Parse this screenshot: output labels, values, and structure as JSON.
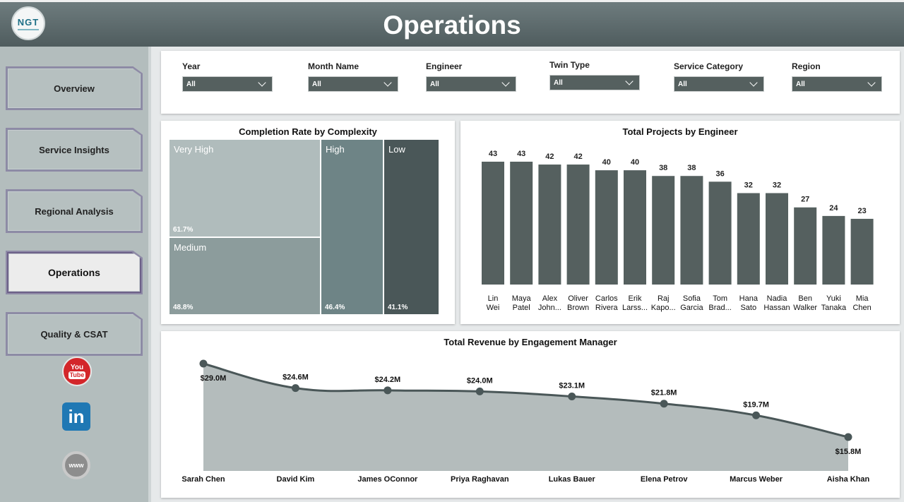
{
  "header": {
    "title": "Operations",
    "logo_text": "NGT"
  },
  "sidebar": {
    "items": [
      {
        "label": "Overview",
        "active": false
      },
      {
        "label": "Service Insights",
        "active": false
      },
      {
        "label": "Regional Analysis",
        "active": false
      },
      {
        "label": "Operations",
        "active": true
      },
      {
        "label": "Quality & CSAT",
        "active": false
      }
    ],
    "social": [
      {
        "icon": "youtube-icon",
        "label_top": "You",
        "label_bottom": "Tube"
      },
      {
        "icon": "linkedin-icon",
        "label": "in"
      },
      {
        "icon": "website-icon",
        "label": "www"
      }
    ]
  },
  "filters": [
    {
      "label": "Year",
      "value": "All"
    },
    {
      "label": "Month Name",
      "value": "All"
    },
    {
      "label": "Engineer",
      "value": "All"
    },
    {
      "label": "Twin Type",
      "value": "All"
    },
    {
      "label": "Service Category",
      "value": "All"
    },
    {
      "label": "Region",
      "value": "All"
    }
  ],
  "treemap": {
    "title": "Completion Rate by Complexity",
    "tiles": [
      {
        "label": "Very High",
        "value": "61.7%",
        "color": "#b0bcbc"
      },
      {
        "label": "Medium",
        "value": "48.8%",
        "color": "#8c9c9c"
      },
      {
        "label": "High",
        "value": "46.4%",
        "color": "#6e8486"
      },
      {
        "label": "Low",
        "value": "41.1%",
        "color": "#4a5758"
      }
    ]
  },
  "chart_data": [
    {
      "type": "bar",
      "title": "Total Projects by Engineer",
      "categories": [
        [
          "Lin",
          "Wei"
        ],
        [
          "Maya",
          "Patel"
        ],
        [
          "Alex",
          "John..."
        ],
        [
          "Oliver",
          "Brown"
        ],
        [
          "Carlos",
          "Rivera"
        ],
        [
          "Erik",
          "Larss..."
        ],
        [
          "Raj",
          "Kapo..."
        ],
        [
          "Sofia",
          "Garcia"
        ],
        [
          "Tom",
          "Brad..."
        ],
        [
          "Hana",
          "Sato"
        ],
        [
          "Nadia",
          "Hassan"
        ],
        [
          "Ben",
          "Walker"
        ],
        [
          "Yuki",
          "Tanaka"
        ],
        [
          "Mia",
          "Chen"
        ]
      ],
      "values": [
        43,
        43,
        42,
        42,
        40,
        40,
        38,
        38,
        36,
        32,
        32,
        27,
        24,
        23
      ],
      "color": "#55605f",
      "ylim": [
        0,
        43
      ]
    },
    {
      "type": "area",
      "title": "Total Revenue by Engagement Manager",
      "categories": [
        "Sarah Chen",
        "David Kim",
        "James OConnor",
        "Priya Raghavan",
        "Lukas Bauer",
        "Elena Petrov",
        "Marcus Weber",
        "Aisha Khan"
      ],
      "values": [
        29.0,
        24.6,
        24.2,
        24.0,
        23.1,
        21.8,
        19.7,
        15.8
      ],
      "labels": [
        "$29.0M",
        "$24.6M",
        "$24.2M",
        "$24.0M",
        "$23.1M",
        "$21.8M",
        "$19.7M",
        "$15.8M"
      ],
      "line_color": "#4a5758",
      "fill_color": "#b4bcbc"
    }
  ]
}
